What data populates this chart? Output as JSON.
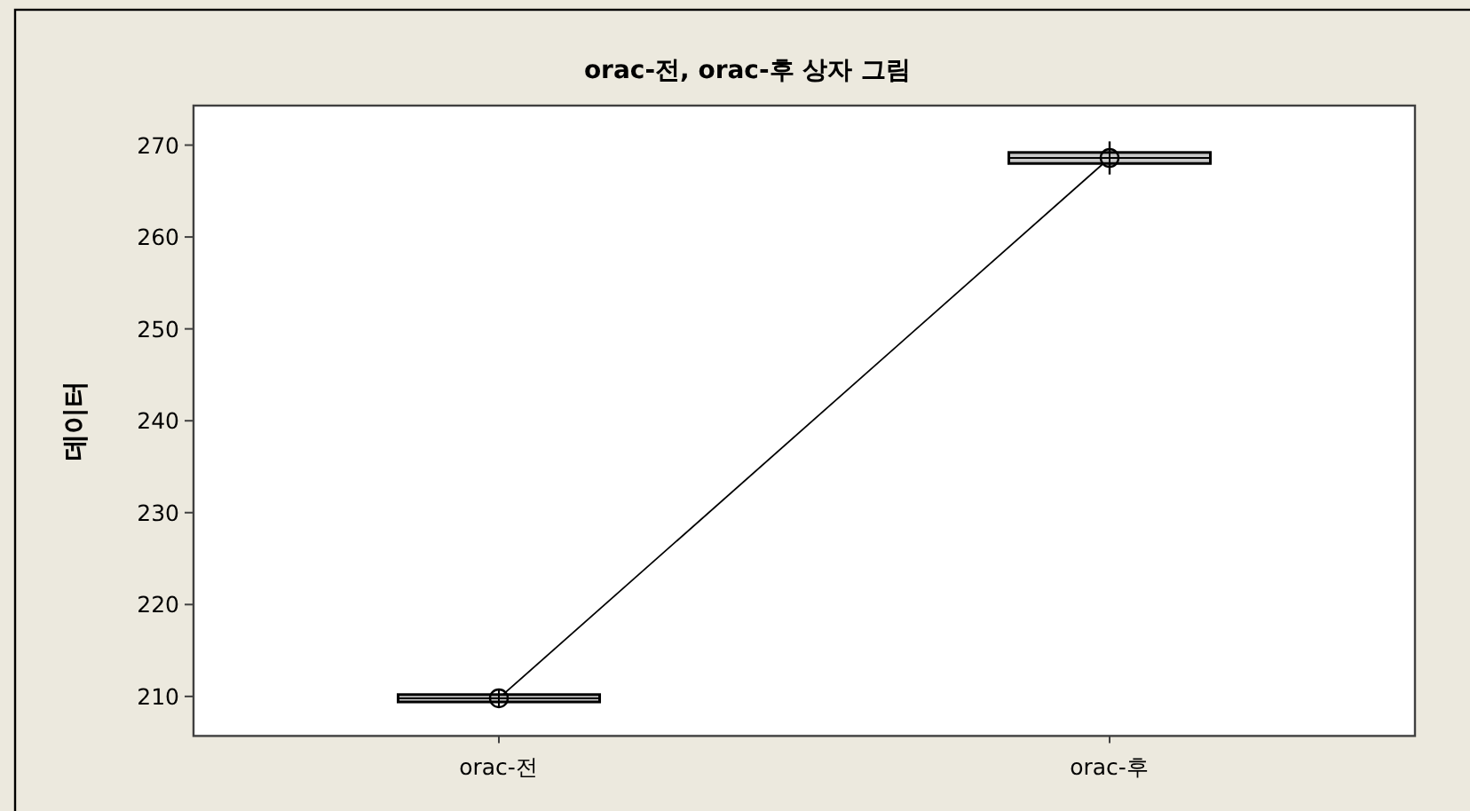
{
  "chart_data": {
    "type": "box",
    "title": "orac-전, orac-후 상자 그림",
    "ylabel": "데이터",
    "categories": [
      "orac-전",
      "orac-후"
    ],
    "ylim": [
      205.7,
      274.3
    ],
    "yticks": [
      210,
      220,
      230,
      240,
      250,
      260,
      270
    ],
    "series": [
      {
        "type": "line",
        "color": "#000000",
        "values": [
          209.8,
          268.6
        ]
      },
      {
        "color": "#c8c8c8",
        "boxes": [
          {
            "low": 209.4,
            "q1": 209.4,
            "median": 209.8,
            "q3": 210.2,
            "high": 210.2,
            "mean": 209.8
          },
          {
            "low": 266.8,
            "q1": 268.0,
            "median": 268.6,
            "q3": 269.2,
            "high": 270.4,
            "mean": 268.6
          }
        ]
      }
    ]
  }
}
